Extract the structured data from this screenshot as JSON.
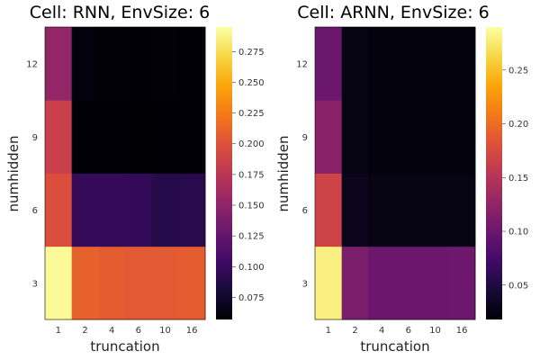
{
  "chart_data": [
    {
      "type": "heatmap",
      "title": "Cell: RNN, EnvSize: 6",
      "xlabel": "truncation",
      "ylabel": "numhidden",
      "x_categories": [
        "1",
        "2",
        "4",
        "6",
        "10",
        "16"
      ],
      "y_categories": [
        "3",
        "6",
        "9",
        "12"
      ],
      "values": [
        [
          0.292,
          0.21,
          0.207,
          0.205,
          0.205,
          0.207
        ],
        [
          0.197,
          0.097,
          0.097,
          0.096,
          0.089,
          0.091
        ],
        [
          0.184,
          0.058,
          0.058,
          0.057,
          0.058,
          0.058
        ],
        [
          0.152,
          0.06,
          0.059,
          0.058,
          0.059,
          0.058
        ]
      ],
      "colorbar": {
        "min": 0.057,
        "max": 0.295,
        "ticks": [
          "0.075",
          "0.100",
          "0.125",
          "0.150",
          "0.175",
          "0.200",
          "0.225",
          "0.250",
          "0.275"
        ]
      },
      "colormap": "inferno"
    },
    {
      "type": "heatmap",
      "title": "Cell: ARNN, EnvSize: 6",
      "xlabel": "truncation",
      "ylabel": "numhidden",
      "x_categories": [
        "1",
        "2",
        "4",
        "6",
        "10",
        "16"
      ],
      "y_categories": [
        "3",
        "6",
        "9",
        "12"
      ],
      "values": [
        [
          0.28,
          0.11,
          0.1,
          0.1,
          0.1,
          0.102
        ],
        [
          0.168,
          0.03,
          0.025,
          0.025,
          0.025,
          0.025
        ],
        [
          0.12,
          0.025,
          0.022,
          0.022,
          0.022,
          0.022
        ],
        [
          0.1,
          0.025,
          0.022,
          0.022,
          0.022,
          0.022
        ]
      ],
      "colorbar": {
        "min": 0.018,
        "max": 0.29,
        "ticks": [
          "0.05",
          "0.10",
          "0.15",
          "0.20",
          "0.25"
        ]
      },
      "colormap": "inferno"
    }
  ]
}
